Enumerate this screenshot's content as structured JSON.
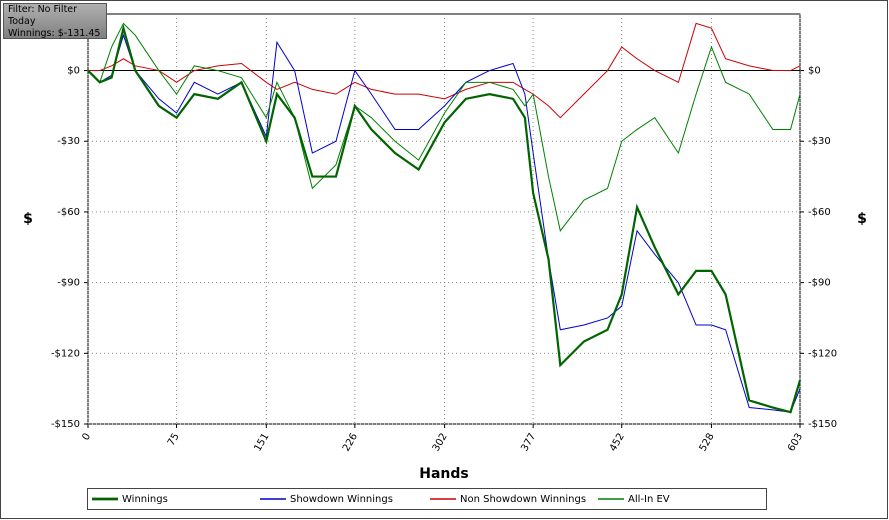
{
  "overlay": {
    "filter": "Filter: No Filter",
    "period": "Today",
    "winnings": "Winnings: $-131.45"
  },
  "chart_data": {
    "type": "line",
    "x_label": "Hands",
    "y_label": "$",
    "x": [
      0,
      10,
      20,
      30,
      40,
      60,
      75,
      90,
      110,
      130,
      151,
      160,
      175,
      190,
      210,
      226,
      240,
      260,
      280,
      302,
      320,
      340,
      360,
      370,
      377,
      390,
      400,
      420,
      440,
      452,
      465,
      480,
      500,
      515,
      528,
      540,
      560,
      580,
      595,
      603
    ],
    "series": [
      {
        "name": "Winnings",
        "color": "#006400",
        "width": 2.2,
        "values": [
          0,
          -5,
          -3,
          18,
          0,
          -15,
          -20,
          -10,
          -12,
          -5,
          -30,
          -10,
          -20,
          -45,
          -45,
          -15,
          -25,
          -35,
          -42,
          -22,
          -12,
          -10,
          -12,
          -20,
          -52,
          -80,
          -125,
          -115,
          -110,
          -95,
          -58,
          -75,
          -95,
          -85,
          -85,
          -95,
          -140,
          -143,
          -145,
          -131.45
        ]
      },
      {
        "name": "Showdown Winnings",
        "color": "#0000cc",
        "width": 1,
        "values": [
          0,
          -5,
          -2,
          15,
          0,
          -12,
          -18,
          -5,
          -10,
          -5,
          -28,
          12,
          0,
          -35,
          -30,
          0,
          -10,
          -25,
          -25,
          -15,
          -5,
          0,
          3,
          -10,
          -35,
          -80,
          -110,
          -108,
          -105,
          -100,
          -68,
          -78,
          -90,
          -108,
          -108,
          -110,
          -143,
          -144,
          -145,
          -135
        ]
      },
      {
        "name": "Non Showdown Winnings",
        "color": "#cc0000",
        "width": 1,
        "values": [
          0,
          0,
          2,
          5,
          2,
          0,
          -5,
          0,
          2,
          3,
          -5,
          -8,
          -5,
          -8,
          -10,
          -5,
          -8,
          -10,
          -10,
          -12,
          -8,
          -5,
          -5,
          -8,
          -10,
          -15,
          -20,
          -10,
          0,
          10,
          5,
          0,
          -5,
          20,
          18,
          5,
          2,
          0,
          0,
          2
        ]
      },
      {
        "name": "All-In EV",
        "color": "#008000",
        "width": 1,
        "values": [
          0,
          -5,
          10,
          20,
          15,
          0,
          -10,
          2,
          0,
          -3,
          -20,
          -5,
          -20,
          -50,
          -40,
          -15,
          -20,
          -30,
          -38,
          -18,
          -5,
          -5,
          -8,
          -15,
          -10,
          -45,
          -68,
          -55,
          -50,
          -30,
          -25,
          -20,
          -35,
          -10,
          10,
          -5,
          -10,
          -25,
          -25,
          -10
        ]
      }
    ],
    "xlim": [
      0,
      603
    ],
    "xticks": [
      0,
      75,
      151,
      226,
      302,
      377,
      452,
      528,
      603
    ],
    "ylim": [
      -150,
      24
    ],
    "yticks": [
      {
        "value": -150,
        "label": "-$150"
      },
      {
        "value": -120,
        "label": "-$120"
      },
      {
        "value": -90,
        "label": "-$90"
      },
      {
        "value": -60,
        "label": "-$60"
      },
      {
        "value": -30,
        "label": "-$30"
      },
      {
        "value": 0,
        "label": "$0"
      }
    ],
    "grid": true
  }
}
